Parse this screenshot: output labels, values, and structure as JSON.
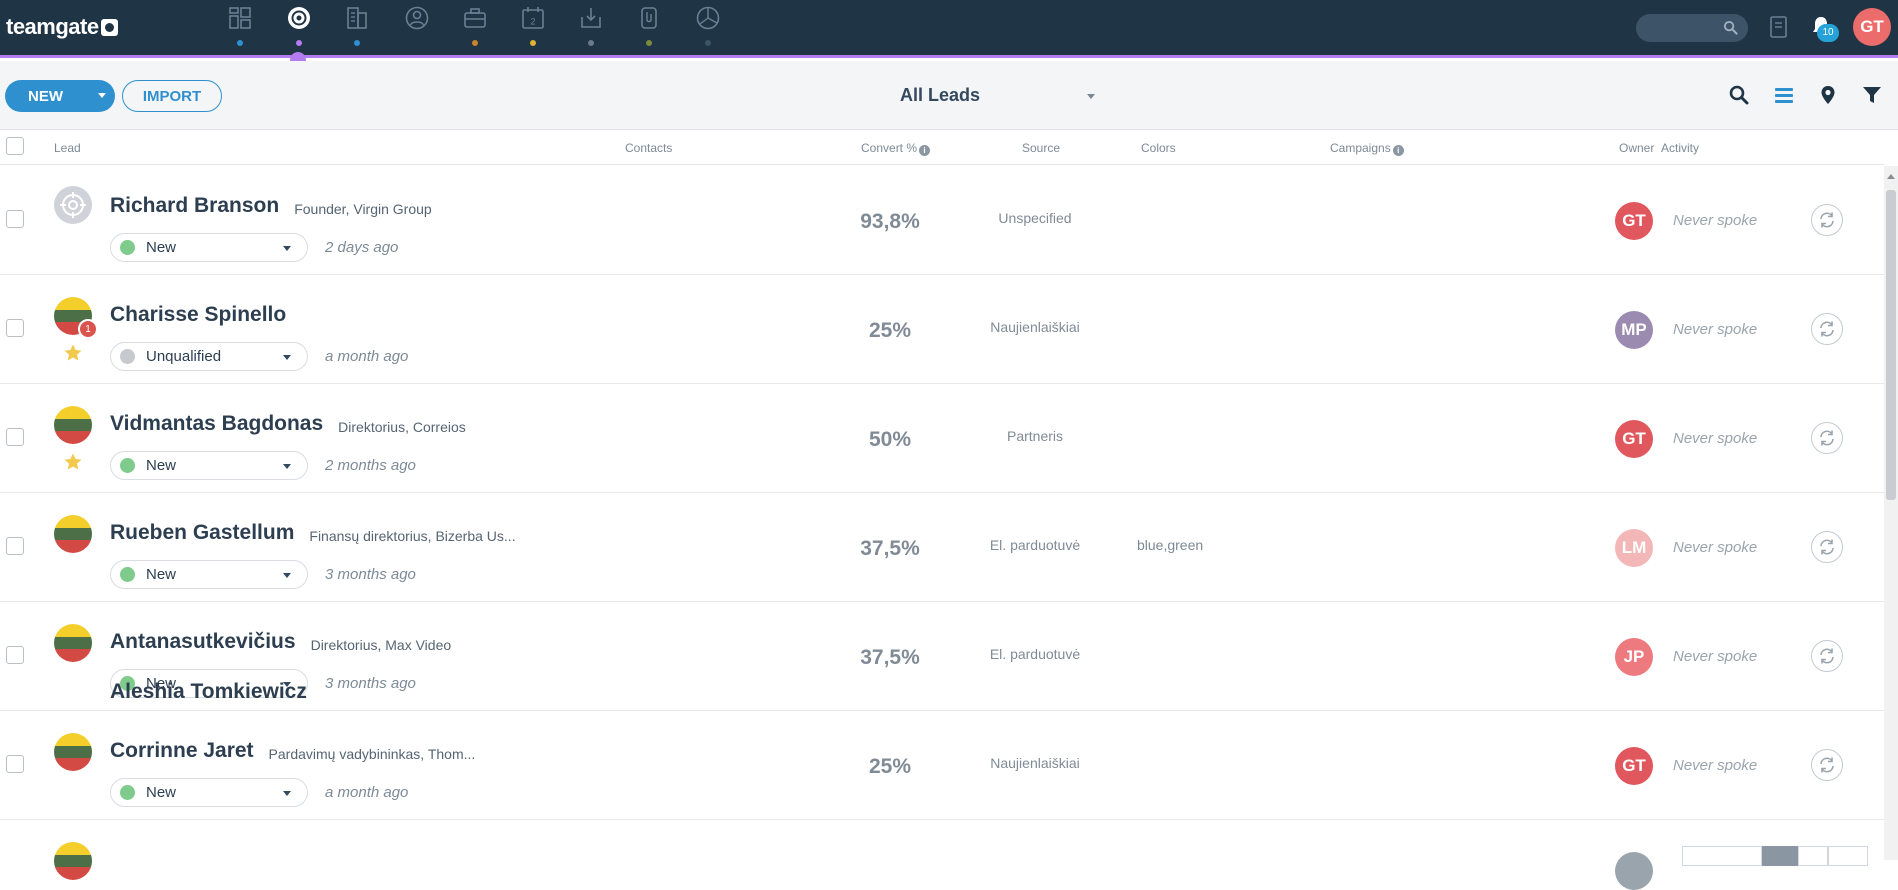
{
  "app": {
    "logo_text": "teamgate",
    "notifications_count": "10",
    "user_initials": "GT"
  },
  "nav": [
    {
      "icon": "dashboard-icon",
      "dot": "#2f90cf"
    },
    {
      "icon": "leads-target-icon",
      "dot": "#b57cf0",
      "active": true
    },
    {
      "icon": "companies-icon",
      "dot": "#2f90cf"
    },
    {
      "icon": "contacts-icon",
      "dot": "none"
    },
    {
      "icon": "deals-briefcase-icon",
      "dot": "#c9852c"
    },
    {
      "icon": "calendar-icon",
      "dot": "#e0b431"
    },
    {
      "icon": "inbox-download-icon",
      "dot": "#6b7b8c"
    },
    {
      "icon": "documents-icon",
      "dot": "#7c8a3b"
    },
    {
      "icon": "reports-pie-icon",
      "dot": "#3d5468"
    }
  ],
  "toolbar": {
    "new_label": "NEW",
    "import_label": "IMPORT",
    "view_label": "All Leads"
  },
  "columns": {
    "lead": "Lead",
    "contacts": "Contacts",
    "convert": "Convert %",
    "source": "Source",
    "colors": "Colors",
    "campaigns": "Campaigns",
    "owner": "Owner",
    "activity": "Activity"
  },
  "leads": [
    {
      "name": "Richard Branson",
      "title": "Founder, Virgin Group",
      "status": "New",
      "status_color": "#7fcb8b",
      "time": "2 days ago",
      "convert": "93,8%",
      "source": "Unspecified",
      "colors": "",
      "owner": "GT",
      "owner_color": "#e0575e",
      "activity": "Never spoke",
      "icon": "target",
      "starred": false,
      "badge": ""
    },
    {
      "name": "Charisse Spinello",
      "title": "",
      "status": "Unqualified",
      "status_color": "#c6c9cd",
      "time": "a month ago",
      "convert": "25%",
      "source": "Naujienlaiškiai",
      "colors": "",
      "owner": "MP",
      "owner_color": "#9b8bb0",
      "activity": "Never spoke",
      "icon": "flag",
      "starred": true,
      "badge": "1"
    },
    {
      "name": "Vidmantas Bagdonas",
      "title": "Direktorius, Correios",
      "status": "New",
      "status_color": "#7fcb8b",
      "time": "2 months ago",
      "convert": "50%",
      "source": "Partneris",
      "colors": "",
      "owner": "GT",
      "owner_color": "#e0575e",
      "activity": "Never spoke",
      "icon": "flag",
      "starred": true,
      "badge": ""
    },
    {
      "name": "Rueben Gastellum",
      "title": "Finansų direktorius, Bizerba Us...",
      "status": "New",
      "status_color": "#7fcb8b",
      "time": "3 months ago",
      "convert": "37,5%",
      "source": "El. parduotuvė",
      "colors": "blue,green",
      "owner": "LM",
      "owner_color": "#f3b7b7",
      "activity": "Never spoke",
      "icon": "flag",
      "starred": false,
      "badge": ""
    },
    {
      "name": "Antanasutkevičius",
      "title": "Direktorius, Max Video",
      "status": "New",
      "status_color": "#7fcb8b",
      "time": "3 months ago",
      "convert": "37,5%",
      "source": "El. parduotuvė",
      "colors": "",
      "owner": "JP",
      "owner_color": "#ec7a7f",
      "activity": "Never spoke",
      "icon": "flag",
      "starred": false,
      "badge": ""
    },
    {
      "name": "Corrinne Jaret",
      "title": "Pardavimų vadybininkas, Thom...",
      "status": "New",
      "status_color": "#7fcb8b",
      "time": "a month ago",
      "convert": "25%",
      "source": "Naujienlaiškiai",
      "colors": "",
      "owner": "GT",
      "owner_color": "#e0575e",
      "activity": "Never spoke",
      "icon": "flag",
      "starred": false,
      "badge": ""
    }
  ],
  "partial_row": {
    "name": "Aleshia Tomkiewicz"
  }
}
